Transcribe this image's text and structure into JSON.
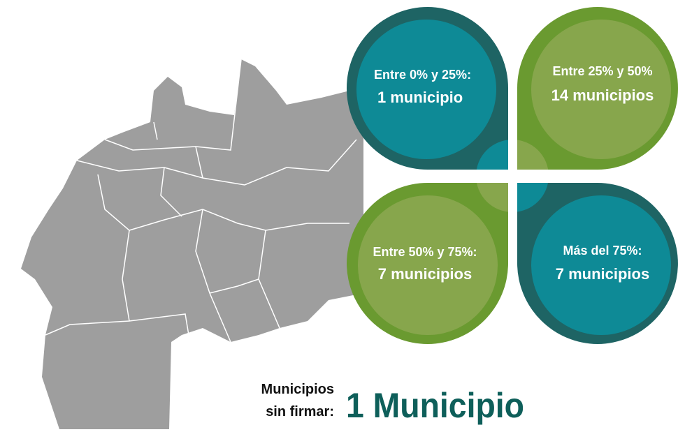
{
  "quadrants": [
    {
      "label": "Entre 0% y 25%:",
      "count": "1 municipio"
    },
    {
      "label": "Entre 25% y 50%",
      "count": "14 municipios"
    },
    {
      "label": "Entre 50% y 75%:",
      "count": "7 municipios"
    },
    {
      "label": "Más del 75%:",
      "count": "7 municipios"
    }
  ],
  "footer": {
    "label_lines": [
      "Municipios",
      "sin firmar:"
    ],
    "value": "1 Municipio"
  }
}
